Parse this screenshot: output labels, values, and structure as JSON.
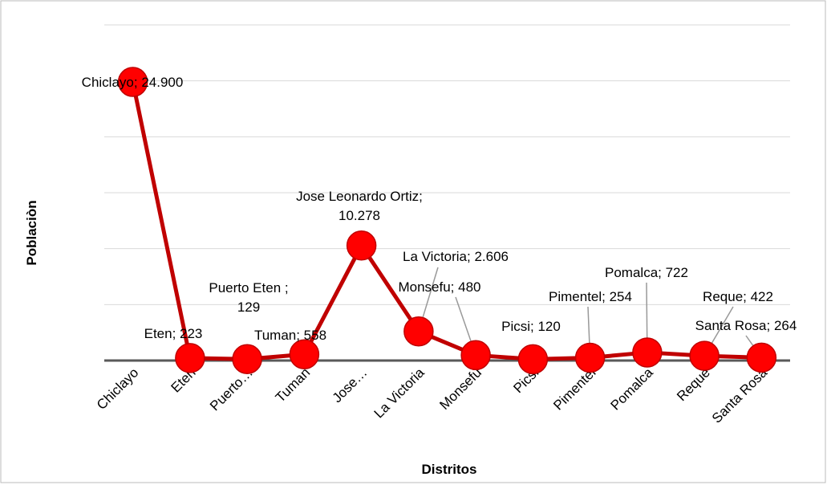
{
  "chart_data": {
    "type": "line",
    "x_label": "Distritos",
    "y_label": "Poblaciòn",
    "categories": [
      "Chiclayo",
      "Eten",
      "Puerto…",
      "Tuman",
      "Jose…",
      "La Victoria",
      "Monsefu",
      "Picsi",
      "Pimentel",
      "Pomalca",
      "Reque",
      "Santa Rosa"
    ],
    "series": [
      {
        "color": "#c00000",
        "marker_color": "#ff0000",
        "values": [
          24900,
          223,
          129,
          558,
          10278,
          2606,
          480,
          120,
          254,
          722,
          422,
          264
        ],
        "value_labels": [
          "Chiclayo; 24.900",
          "Eten; 223",
          "Puerto Eten ; 129",
          "Tuman; 558",
          "Jose Leonardo Ortiz; 10.278",
          "La Victoria; 2.606",
          "Monsefu; 480",
          "Picsi; 120",
          "Pimentel; 254",
          "Pomalca; 722",
          "Reque; 422",
          "Santa Rosa; 264"
        ]
      }
    ],
    "ylim": [
      0,
      30000
    ],
    "yticks": [
      0,
      5000,
      10000,
      15000,
      20000,
      25000,
      30000
    ],
    "grid": true
  }
}
